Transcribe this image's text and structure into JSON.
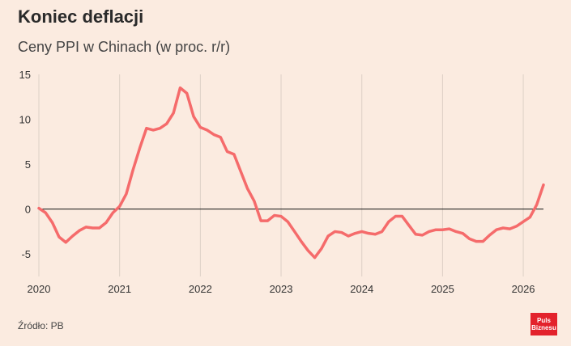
{
  "header": {
    "title": "Koniec deflacji",
    "subtitle": "Ceny PPI w Chinach (w proc. r/r)"
  },
  "footer": {
    "source": "Źródło: PB",
    "logo_line1": "Puls",
    "logo_line2": "Biznesu"
  },
  "colors": {
    "background": "#fbebe0",
    "line": "#f56b6b",
    "grid": "#ddd0c6",
    "zero": "#111111",
    "logo": "#e3222c"
  },
  "chart_data": {
    "type": "line",
    "title": "Koniec deflacji",
    "subtitle": "Ceny PPI w Chinach (w proc. r/r)",
    "xlabel": "",
    "ylabel": "",
    "xlim": [
      2020.0,
      2026.25
    ],
    "ylim": [
      -7.5,
      15
    ],
    "x_ticks": [
      "2020",
      "2021",
      "2022",
      "2023",
      "2024",
      "2025",
      "2026"
    ],
    "y_ticks": [
      15,
      10,
      5,
      0,
      -5
    ],
    "grid": "vertical",
    "legend": "none",
    "series": [
      {
        "x": [
          2020.0,
          2020.083,
          2020.167,
          2020.25,
          2020.333,
          2020.417,
          2020.5,
          2020.583,
          2020.667,
          2020.75,
          2020.833,
          2020.917,
          2021.0,
          2021.083,
          2021.167,
          2021.25,
          2021.333,
          2021.417,
          2021.5,
          2021.583,
          2021.667,
          2021.75,
          2021.833,
          2021.917,
          2022.0,
          2022.083,
          2022.167,
          2022.25,
          2022.333,
          2022.417,
          2022.5,
          2022.583,
          2022.667,
          2022.75,
          2022.833,
          2022.917,
          2023.0,
          2023.083,
          2023.167,
          2023.25,
          2023.333,
          2023.417,
          2023.5,
          2023.583,
          2023.667,
          2023.75,
          2023.833,
          2023.917,
          2024.0,
          2024.083,
          2024.167,
          2024.25,
          2024.333,
          2024.417,
          2024.5,
          2024.583,
          2024.667,
          2024.75,
          2024.833,
          2024.917,
          2025.0,
          2025.083,
          2025.167,
          2025.25,
          2025.333,
          2025.417,
          2025.5,
          2025.583,
          2025.667,
          2025.75,
          2025.833,
          2025.917,
          2026.0,
          2026.083,
          2026.167,
          2026.25
        ],
        "values": [
          0.1,
          -0.4,
          -1.5,
          -3.1,
          -3.7,
          -3.0,
          -2.4,
          -2.0,
          -2.1,
          -2.1,
          -1.5,
          -0.4,
          0.3,
          1.7,
          4.4,
          6.8,
          9.0,
          8.8,
          9.0,
          9.5,
          10.7,
          13.5,
          12.9,
          10.3,
          9.1,
          8.8,
          8.3,
          8.0,
          6.4,
          6.1,
          4.2,
          2.3,
          0.9,
          -1.3,
          -1.3,
          -0.7,
          -0.8,
          -1.4,
          -2.5,
          -3.6,
          -4.6,
          -5.4,
          -4.4,
          -3.0,
          -2.5,
          -2.6,
          -3.0,
          -2.7,
          -2.5,
          -2.7,
          -2.8,
          -2.5,
          -1.4,
          -0.8,
          -0.8,
          -1.8,
          -2.8,
          -2.9,
          -2.5,
          -2.3,
          -2.3,
          -2.2,
          -2.5,
          -2.7,
          -3.3,
          -3.6,
          -3.6,
          -2.9,
          -2.3,
          -2.1,
          -2.2,
          -1.9,
          -1.4,
          -0.9,
          0.5,
          2.7
        ]
      }
    ]
  }
}
